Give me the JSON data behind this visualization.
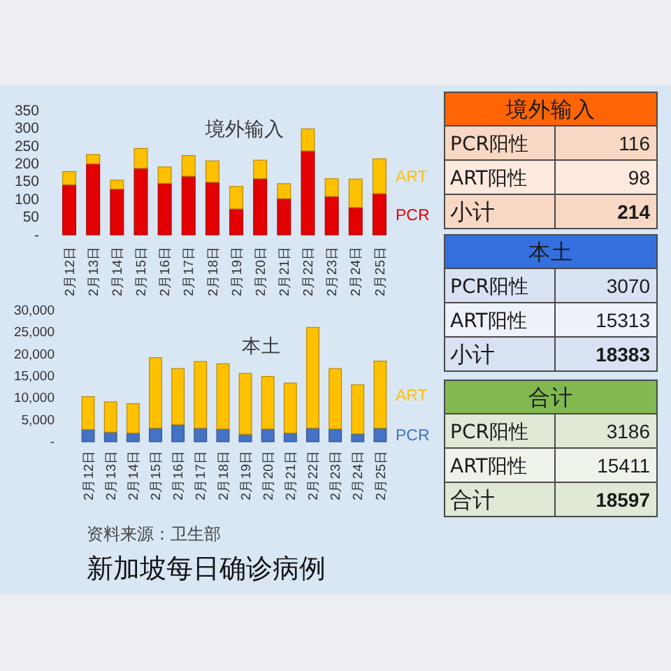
{
  "chart_data": [
    {
      "type": "bar",
      "title": "境外输入",
      "categories": [
        "2月12日",
        "2月13日",
        "2月14日",
        "2月15日",
        "2月16日",
        "2月17日",
        "2月18日",
        "2月19日",
        "2月20日",
        "2月21日",
        "2月22日",
        "2月23日",
        "2月24日",
        "2月25日"
      ],
      "stacked": true,
      "series": [
        {
          "name": "PCR",
          "color": "#e30000",
          "values": [
            141,
            200,
            129,
            187,
            145,
            165,
            148,
            73,
            158,
            102,
            236,
            108,
            77,
            116
          ]
        },
        {
          "name": "ART",
          "color": "#ffc000",
          "values": [
            37,
            26,
            25,
            56,
            46,
            58,
            60,
            63,
            52,
            42,
            62,
            50,
            80,
            98
          ]
        }
      ],
      "ylim": [
        0,
        350
      ],
      "yticks": [
        {
          "value": 0,
          "label": "-"
        },
        50,
        100,
        150,
        200,
        250,
        300,
        350
      ],
      "legend": "right"
    },
    {
      "type": "bar",
      "title": "本土",
      "categories": [
        "2月12日",
        "2月13日",
        "2月14日",
        "2月15日",
        "2月16日",
        "2月17日",
        "2月18日",
        "2月19日",
        "2月20日",
        "2月21日",
        "2月22日",
        "2月23日",
        "2月24日",
        "2月25日"
      ],
      "stacked": true,
      "series": [
        {
          "name": "PCR",
          "color": "#4472c4",
          "values": [
            2800,
            2200,
            2000,
            3100,
            3900,
            3100,
            2900,
            1700,
            2900,
            2000,
            3100,
            2900,
            1800,
            3100
          ]
        },
        {
          "name": "ART",
          "color": "#ffc000",
          "values": [
            7500,
            6900,
            6700,
            16100,
            12800,
            15200,
            14900,
            13900,
            12000,
            11400,
            23000,
            13800,
            11200,
            15300
          ]
        }
      ],
      "ylim": [
        0,
        30000
      ],
      "yticks": [
        {
          "value": 0,
          "label": "-"
        },
        {
          "value": 5000,
          "label": "5,000"
        },
        {
          "value": 10000,
          "label": "10,000"
        },
        {
          "value": 15000,
          "label": "15,000"
        },
        {
          "value": 20000,
          "label": "20,000"
        },
        {
          "value": 25000,
          "label": "25,000"
        },
        {
          "value": 30000,
          "label": "30,000"
        }
      ],
      "legend": "right"
    },
    {
      "type": "other",
      "title": "境外输入",
      "colors": [
        "#f8d8c4",
        "#fde9de",
        "#f8d8c4"
      ],
      "categories": [
        "PCR阳性",
        "ART阳性",
        "小计"
      ],
      "values": [
        116,
        98,
        214
      ],
      "data_labels": true
    },
    {
      "type": "other",
      "title": "本土",
      "colors": [
        "#d9e2f3",
        "#edf1f9",
        "#d9e2f3"
      ],
      "categories": [
        "PCR阳性",
        "ART阳性",
        "小计"
      ],
      "values": [
        3070,
        15313,
        18383
      ],
      "data_labels": true
    },
    {
      "type": "other",
      "title": "合计",
      "colors": [
        "#dfe9d6",
        "#edf3e8",
        "#dfe9d6"
      ],
      "categories": [
        "PCR阳性",
        "ART阳性",
        "合计"
      ],
      "values": [
        3186,
        15411,
        18597
      ],
      "data_labels": true
    },
    {
      "type": "other",
      "title": "新加坡每日确诊病例",
      "annotations": [
        "资料来源：卫生部"
      ]
    }
  ]
}
